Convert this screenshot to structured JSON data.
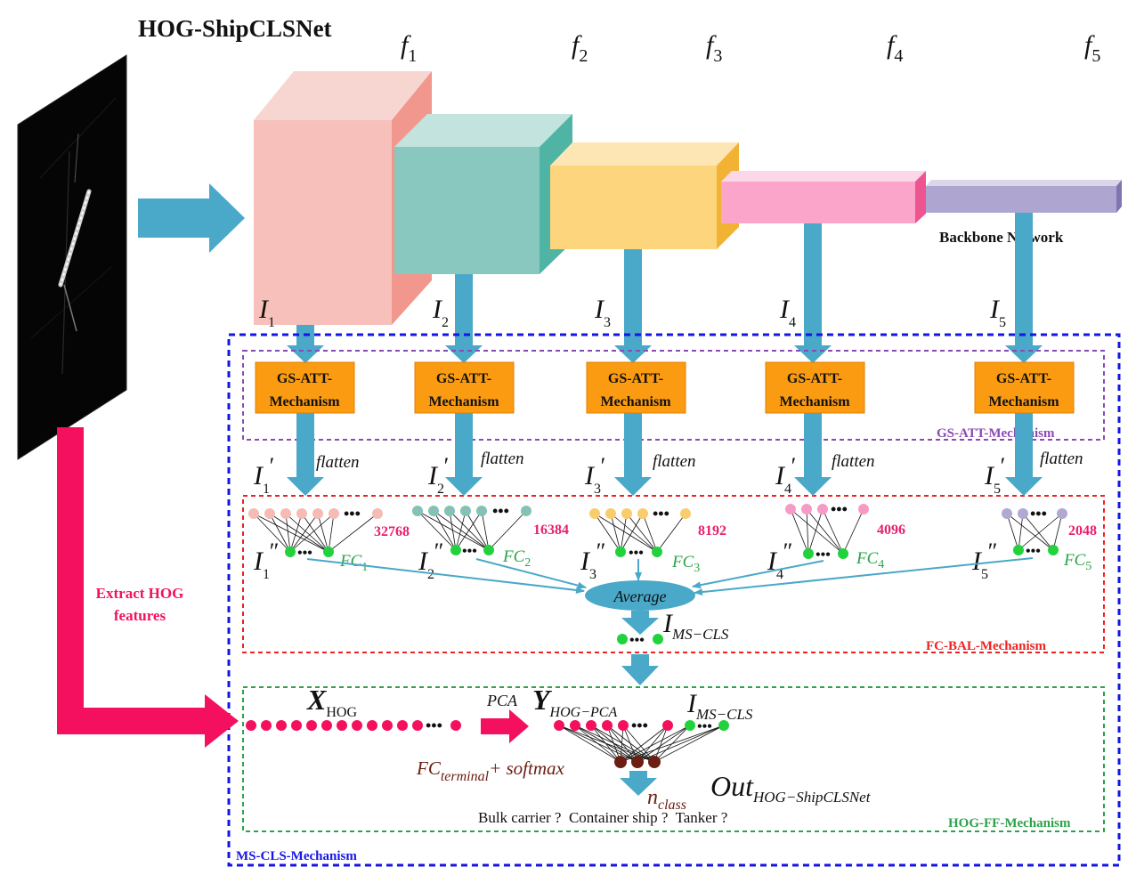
{
  "title": "HOG-ShipCLSNet",
  "stage_labels": [
    {
      "base": "f",
      "sub": "1"
    },
    {
      "base": "f",
      "sub": "2"
    },
    {
      "base": "f",
      "sub": "3"
    },
    {
      "base": "f",
      "sub": "4"
    },
    {
      "base": "f",
      "sub": "5"
    }
  ],
  "backbone_label": "Backbone Network",
  "input_labels": [
    {
      "base": "I",
      "sub": "1"
    },
    {
      "base": "I",
      "sub": "2"
    },
    {
      "base": "I",
      "sub": "3"
    },
    {
      "base": "I",
      "sub": "4"
    },
    {
      "base": "I",
      "sub": "5"
    }
  ],
  "att_box": {
    "line1": "GS-ATT-",
    "line2": "Mechanism"
  },
  "gs_att_region": "GS-ATT-Mechanism",
  "flatten_label": "flatten",
  "prime_labels": [
    {
      "base": "I",
      "sub": "1",
      "mark": "′"
    },
    {
      "base": "I",
      "sub": "2",
      "mark": "′"
    },
    {
      "base": "I",
      "sub": "3",
      "mark": "′"
    },
    {
      "base": "I",
      "sub": "4",
      "mark": "′"
    },
    {
      "base": "I",
      "sub": "5",
      "mark": "′"
    }
  ],
  "dims": [
    "32768",
    "16384",
    "8192",
    "4096",
    "2048"
  ],
  "dprime_labels": [
    {
      "base": "I",
      "sub": "1",
      "mark": "″"
    },
    {
      "base": "I",
      "sub": "2",
      "mark": "″"
    },
    {
      "base": "I",
      "sub": "3",
      "mark": "″"
    },
    {
      "base": "I",
      "sub": "4",
      "mark": "″"
    },
    {
      "base": "I",
      "sub": "5",
      "mark": "″"
    }
  ],
  "fc_labels": [
    {
      "base": "FC",
      "sub": "1"
    },
    {
      "base": "FC",
      "sub": "2"
    },
    {
      "base": "FC",
      "sub": "3"
    },
    {
      "base": "FC",
      "sub": "4"
    },
    {
      "base": "FC",
      "sub": "5"
    }
  ],
  "average_label": "Average",
  "ms_cls": {
    "base": "I",
    "sub": "MS−CLS"
  },
  "fc_bal_region": "FC-BAL-Mechanism",
  "extract_hog": {
    "line1": "Extract HOG",
    "line2": "features"
  },
  "x_hog": {
    "base": "X",
    "sub": "HOG"
  },
  "pca_label": "PCA",
  "y_hog": {
    "base": "Y",
    "sub": "HOG−PCA"
  },
  "ms_cls2": {
    "base": "I",
    "sub": "MS−CLS"
  },
  "fc_terminal": {
    "base": "FC",
    "sub": "terminal",
    "suffix": "+ softmax"
  },
  "n_class": {
    "base": "n",
    "sub": "class"
  },
  "out_label": {
    "base": "Out",
    "sub": "HOG−ShipCLSNet"
  },
  "question": "Bulk carrier ?  Container ship ?  Tanker ?",
  "hog_ff_region": "HOG-FF-Mechanism",
  "ms_cls_region": "MS-CLS-Mechanism",
  "colors": {
    "arrow": "#4aa8c8",
    "magenta": "#f5105f",
    "orange": "#fb9b12",
    "green_dot": "#21d23d",
    "blue_border": "#1515e6",
    "purple_border": "#8a4ab3",
    "red_border": "#ee2222",
    "green_border": "#2ca24a",
    "dim_text": "#e8206e",
    "fc_text": "#2ca24a",
    "dark_red": "#6b1f12"
  }
}
